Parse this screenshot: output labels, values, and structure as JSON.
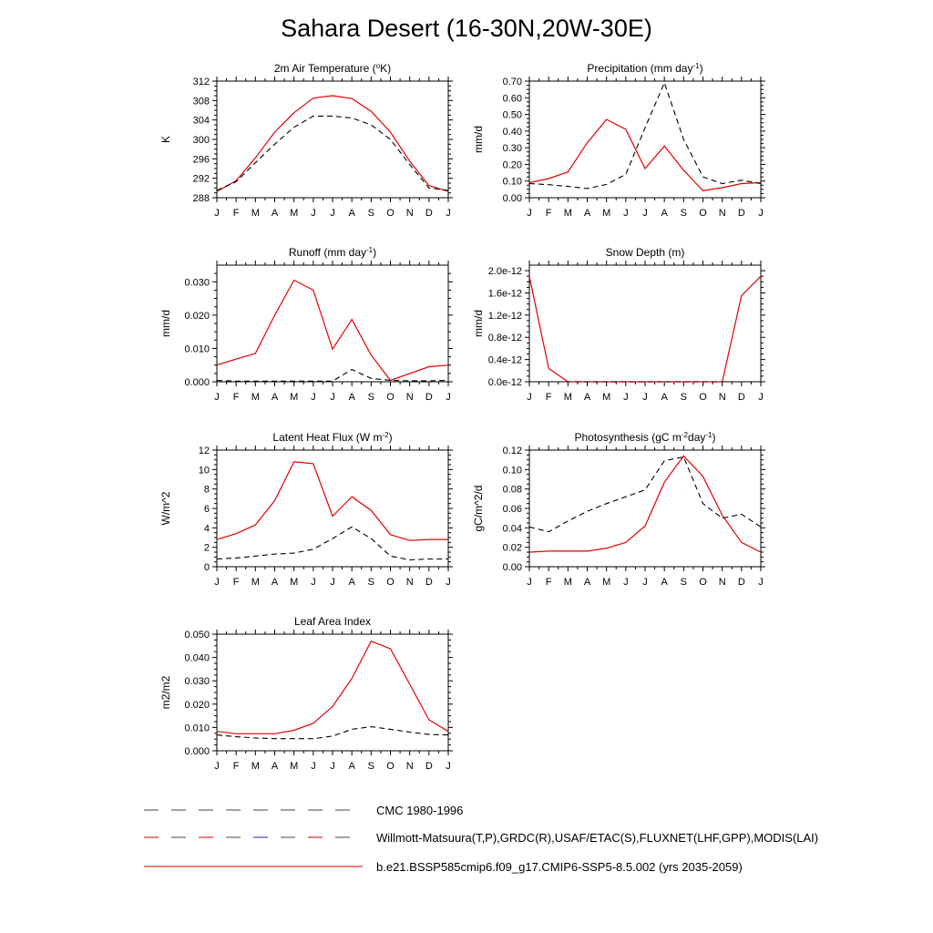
{
  "title": "Sahara Desert (16-30N,20W-30E)",
  "months": [
    "J",
    "F",
    "M",
    "A",
    "M",
    "J",
    "J",
    "A",
    "S",
    "O",
    "N",
    "D",
    "J"
  ],
  "chart_data": [
    {
      "type": "line",
      "title": "2m Air Temperature (°K)",
      "title_parts": [
        {
          "t": "2m Air Temperature ("
        },
        {
          "t": "o",
          "sup": true
        },
        {
          "t": "K)"
        }
      ],
      "ylabel": "K",
      "ylim": [
        288,
        312
      ],
      "yticks": [
        288,
        292,
        296,
        300,
        304,
        308,
        312
      ],
      "yticklabels": [
        "288",
        "292",
        "296",
        "300",
        "304",
        "308",
        "312"
      ],
      "series": [
        {
          "values": [
            289.3,
            291.5,
            296.2,
            301.5,
            305.5,
            308.5,
            309.0,
            308.4,
            305.8,
            301.5,
            295.5,
            290.5,
            289.3
          ]
        },
        {
          "values": [
            289.5,
            291.3,
            295.2,
            299.0,
            302.5,
            304.8,
            304.8,
            304.4,
            303.0,
            300.0,
            294.8,
            290.0,
            289.5
          ]
        }
      ]
    },
    {
      "type": "line",
      "title": "Precipitation (mm day-1)",
      "title_parts": [
        {
          "t": "Precipitation (mm day"
        },
        {
          "t": "-1",
          "sup": true
        },
        {
          "t": ")"
        }
      ],
      "ylabel": "mm/d",
      "ylim": [
        0,
        0.7
      ],
      "yticks": [
        0,
        0.1,
        0.2,
        0.3,
        0.4,
        0.5,
        0.6,
        0.7
      ],
      "yticklabels": [
        "0.00",
        "0.10",
        "0.20",
        "0.30",
        "0.40",
        "0.50",
        "0.60",
        "0.70"
      ],
      "series": [
        {
          "values": [
            0.09,
            0.115,
            0.155,
            0.33,
            0.47,
            0.41,
            0.175,
            0.31,
            0.165,
            0.042,
            0.06,
            0.085,
            0.09
          ]
        },
        {
          "values": [
            0.085,
            0.078,
            0.068,
            0.055,
            0.08,
            0.14,
            0.42,
            0.69,
            0.35,
            0.125,
            0.085,
            0.105,
            0.085
          ]
        }
      ]
    },
    {
      "type": "line",
      "title": "Runoff (mm day-1)",
      "title_parts": [
        {
          "t": "Runoff (mm day"
        },
        {
          "t": "-1",
          "sup": true
        },
        {
          "t": ")"
        }
      ],
      "ylabel": "mm/d",
      "ylim": [
        0,
        0.035
      ],
      "yticks": [
        0,
        0.01,
        0.02,
        0.03
      ],
      "yticklabels": [
        "0.000",
        "0.010",
        "0.020",
        "0.030"
      ],
      "series": [
        {
          "values": [
            0.005,
            0.0068,
            0.0085,
            0.02,
            0.0305,
            0.0275,
            0.0098,
            0.0187,
            0.008,
            0.0004,
            0.0025,
            0.0045,
            0.005
          ]
        },
        {
          "values": [
            0.0004,
            0.0002,
            0.0002,
            0.0002,
            0.0002,
            0.0002,
            0.0002,
            0.0037,
            0.001,
            0.0004,
            0.0003,
            0.0003,
            0.0004
          ]
        }
      ]
    },
    {
      "type": "line",
      "title": "Snow Depth (m)",
      "title_parts": [
        {
          "t": "Snow Depth (m)"
        }
      ],
      "ylabel": "mm/d",
      "ylim": [
        0,
        2.1e-12
      ],
      "yticks": [
        0,
        4e-13,
        8e-13,
        1.2e-12,
        1.6e-12,
        2e-12
      ],
      "yticklabels": [
        "0.0e-12",
        "0.4e-12",
        "0.8e-12",
        "1.2e-12",
        "1.6e-12",
        "2.0e-12"
      ],
      "series": [
        {
          "values": [
            1.9e-12,
            2.4e-13,
            0,
            0,
            0,
            0,
            0,
            0,
            0,
            0,
            0,
            1.55e-12,
            1.9e-12
          ]
        },
        {
          "values": [
            0,
            0,
            0,
            0,
            0,
            0,
            0,
            0,
            0,
            0,
            0,
            0,
            0
          ]
        }
      ]
    },
    {
      "type": "line",
      "title": "Latent Heat Flux (W m-2)",
      "title_parts": [
        {
          "t": "Latent Heat Flux (W m"
        },
        {
          "t": "-2",
          "sup": true
        },
        {
          "t": ")"
        }
      ],
      "ylabel": "W/m^2",
      "ylim": [
        0,
        12
      ],
      "yticks": [
        0,
        2,
        4,
        6,
        8,
        10,
        12
      ],
      "yticklabels": [
        "0",
        "2",
        "4",
        "6",
        "8",
        "10",
        "12"
      ],
      "series": [
        {
          "values": [
            2.8,
            3.4,
            4.3,
            6.8,
            10.8,
            10.6,
            5.2,
            7.2,
            5.8,
            3.3,
            2.7,
            2.8,
            2.8
          ]
        },
        {
          "values": [
            0.8,
            0.9,
            1.1,
            1.3,
            1.4,
            1.8,
            2.9,
            4.1,
            2.9,
            1.1,
            0.7,
            0.8,
            0.8
          ]
        }
      ]
    },
    {
      "type": "line",
      "title": "Photosynthesis (gC m-2day-1)",
      "title_parts": [
        {
          "t": "Photosynthesis (gC m"
        },
        {
          "t": "-2",
          "sup": true
        },
        {
          "t": "day"
        },
        {
          "t": "-1",
          "sup": true
        },
        {
          "t": ")"
        }
      ],
      "ylabel": "gC/m^2/d",
      "ylim": [
        0,
        0.12
      ],
      "yticks": [
        0,
        0.02,
        0.04,
        0.06,
        0.08,
        0.1,
        0.12
      ],
      "yticklabels": [
        "0.00",
        "0.02",
        "0.04",
        "0.06",
        "0.08",
        "0.10",
        "0.12"
      ],
      "series": [
        {
          "values": [
            0.015,
            0.016,
            0.016,
            0.016,
            0.019,
            0.025,
            0.042,
            0.087,
            0.114,
            0.093,
            0.053,
            0.025,
            0.015
          ]
        },
        {
          "values": [
            0.041,
            0.036,
            0.047,
            0.057,
            0.065,
            0.072,
            0.079,
            0.109,
            0.113,
            0.065,
            0.05,
            0.054,
            0.041
          ]
        }
      ]
    },
    {
      "type": "line",
      "title": "Leaf Area Index",
      "title_parts": [
        {
          "t": "Leaf Area Index"
        }
      ],
      "ylabel": "m2/m2",
      "ylim": [
        0,
        0.05
      ],
      "yticks": [
        0,
        0.01,
        0.02,
        0.03,
        0.04,
        0.05
      ],
      "yticklabels": [
        "0.000",
        "0.010",
        "0.020",
        "0.030",
        "0.040",
        "0.050"
      ],
      "series": [
        {
          "values": [
            0.0083,
            0.0073,
            0.0073,
            0.0073,
            0.0088,
            0.0118,
            0.019,
            0.031,
            0.047,
            0.0437,
            0.0285,
            0.0133,
            0.0083
          ]
        },
        {
          "values": [
            0.0068,
            0.006,
            0.0055,
            0.0052,
            0.0052,
            0.0052,
            0.0063,
            0.0092,
            0.0103,
            0.0092,
            0.008,
            0.007,
            0.0068
          ]
        }
      ]
    }
  ],
  "legend": {
    "entries": [
      {
        "label": "CMC 1980-1996",
        "style": "dash-gray"
      },
      {
        "label": "Willmott-Matsuura(T,P),GRDC(R),USAF/ETAC(S),FLUXNET(LHF,GPP),MODIS(LAI)",
        "style": "dash-multicolor"
      },
      {
        "label": "b.e21.BSSP585cmip6.f09_g17.CMIP6-SSP5-8.5.002 (yrs 2035-2059)",
        "style": "solid-red"
      }
    ]
  },
  "colors": {
    "model_line": "#e60000",
    "obs_line": "#000000",
    "axis": "#000000"
  }
}
